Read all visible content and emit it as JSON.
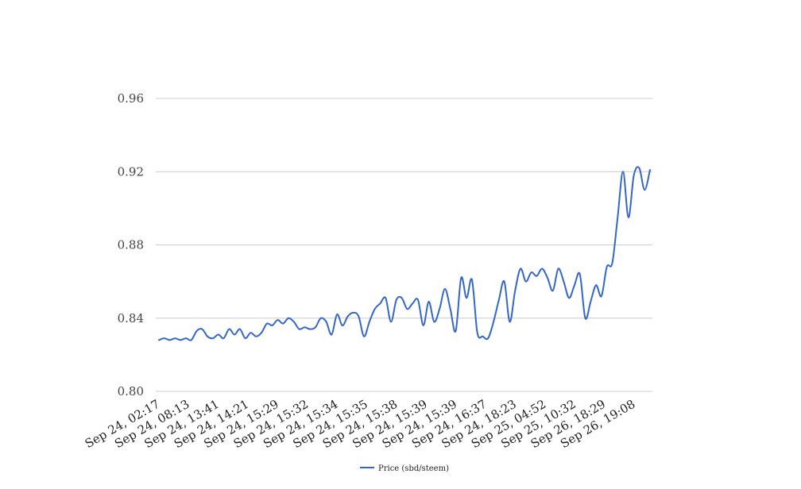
{
  "chart_data": {
    "type": "line",
    "title": "",
    "xlabel": "",
    "ylabel": "",
    "ylim": [
      0.8,
      0.96
    ],
    "y_ticks": [
      "0.80",
      "0.84",
      "0.88",
      "0.92",
      "0.96"
    ],
    "x_tick_labels": [
      "Sep 24, 02:17",
      "Sep 24, 08:13",
      "Sep 24, 13:41",
      "Sep 24, 14:21",
      "Sep 24, 15:29",
      "Sep 24, 15:32",
      "Sep 24, 15:34",
      "Sep 24, 15:35",
      "Sep 24, 15:38",
      "Sep 24, 15:39",
      "Sep 24, 15:39",
      "Sep 24, 16:37",
      "Sep 24, 18:23",
      "Sep 25, 04:52",
      "Sep 25, 10:32",
      "Sep 26, 18:29",
      "Sep 26, 19:08"
    ],
    "grid": true,
    "legend_position": "bottom",
    "series": [
      {
        "name": "Price (sbd/steem)",
        "color": "#3366cc",
        "values": [
          0.828,
          0.829,
          0.828,
          0.829,
          0.828,
          0.829,
          0.828,
          0.833,
          0.834,
          0.83,
          0.829,
          0.831,
          0.829,
          0.834,
          0.831,
          0.834,
          0.829,
          0.832,
          0.83,
          0.832,
          0.837,
          0.836,
          0.839,
          0.837,
          0.84,
          0.838,
          0.834,
          0.835,
          0.834,
          0.835,
          0.84,
          0.838,
          0.831,
          0.842,
          0.836,
          0.841,
          0.843,
          0.841,
          0.83,
          0.838,
          0.845,
          0.848,
          0.851,
          0.838,
          0.85,
          0.851,
          0.845,
          0.848,
          0.85,
          0.836,
          0.849,
          0.838,
          0.845,
          0.856,
          0.845,
          0.833,
          0.862,
          0.851,
          0.861,
          0.832,
          0.83,
          0.829,
          0.838,
          0.85,
          0.86,
          0.838,
          0.855,
          0.867,
          0.86,
          0.865,
          0.863,
          0.867,
          0.862,
          0.855,
          0.867,
          0.86,
          0.851,
          0.858,
          0.864,
          0.84,
          0.849,
          0.858,
          0.852,
          0.868,
          0.87,
          0.895,
          0.92,
          0.895,
          0.918,
          0.922,
          0.91,
          0.921
        ]
      }
    ]
  }
}
